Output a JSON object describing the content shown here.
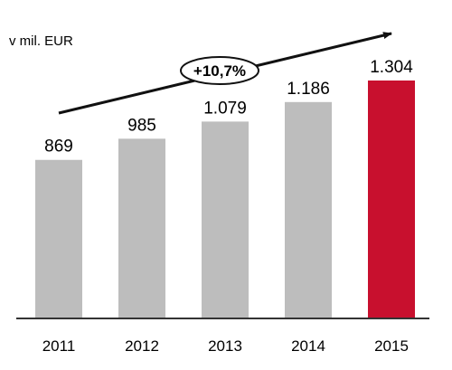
{
  "chart_data": {
    "type": "bar",
    "unit_label": "v mil. EUR",
    "categories": [
      "2011",
      "2012",
      "2013",
      "2014",
      "2015"
    ],
    "values": [
      869,
      985,
      1079,
      1186,
      1304
    ],
    "value_labels": [
      "869",
      "985",
      "1.079",
      "1.186",
      "1.304"
    ],
    "growth_label": "+10,7%",
    "ylim": [
      0,
      1304
    ],
    "grid": false,
    "legend": "none",
    "colors": {
      "bar": "#bdbdbd",
      "highlight": "#c8102e",
      "axis": "#333333",
      "arrow": "#111111"
    },
    "highlight_index": 4
  }
}
